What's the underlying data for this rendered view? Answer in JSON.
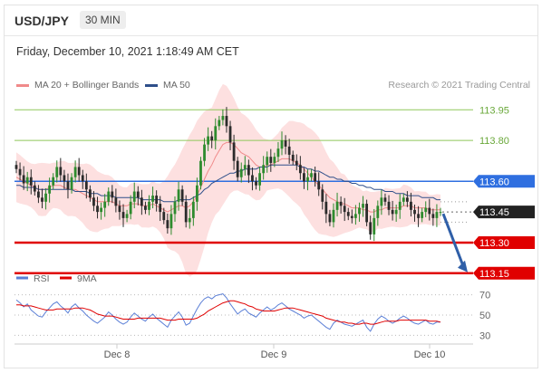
{
  "header": {
    "symbol": "USD/JPY",
    "interval": "30 MIN"
  },
  "datetime": "Friday, December 10, 2021 1:18:49 AM CET",
  "legend": [
    {
      "label": "MA 20 + Bollinger Bands",
      "color": "#f08a8a"
    },
    {
      "label": "MA 50",
      "color": "#2f4f8a"
    }
  ],
  "research_credit": "Research © 2021 Trading Central",
  "chart_data": [
    {
      "type": "candlestick",
      "x_tick_labels": [
        "Dec 8",
        "Dec 9",
        "Dec 10"
      ],
      "ylim": [
        113.22,
        114.0
      ],
      "levels": [
        {
          "value": 113.95,
          "label": "113.95",
          "color": "#8fc85a",
          "kind": "resistance-light"
        },
        {
          "value": 113.8,
          "label": "113.80",
          "color": "#8fc85a",
          "kind": "resistance-light"
        },
        {
          "value": 113.6,
          "label": "113.60",
          "color": "#2f6fe0",
          "kind": "pivot"
        },
        {
          "value": 113.45,
          "label": "113.45",
          "color": "#222222",
          "kind": "last-price"
        },
        {
          "value": 113.3,
          "label": "113.30",
          "color": "#e00000",
          "kind": "support"
        },
        {
          "value": 113.15,
          "label": "113.15",
          "color": "#e00000",
          "kind": "support"
        }
      ],
      "close_series": [
        113.66,
        113.63,
        113.59,
        113.62,
        113.58,
        113.55,
        113.52,
        113.5,
        113.54,
        113.58,
        113.62,
        113.67,
        113.63,
        113.6,
        113.56,
        113.62,
        113.67,
        113.63,
        113.6,
        113.56,
        113.52,
        113.48,
        113.45,
        113.47,
        113.5,
        113.55,
        113.52,
        113.48,
        113.45,
        113.42,
        113.44,
        113.5,
        113.55,
        113.52,
        113.48,
        113.46,
        113.5,
        113.53,
        113.49,
        113.45,
        113.41,
        113.37,
        113.44,
        113.5,
        113.56,
        113.5,
        113.4,
        113.42,
        113.5,
        113.58,
        113.7,
        113.78,
        113.82,
        113.8,
        113.87,
        113.9,
        113.92,
        113.87,
        113.79,
        113.7,
        113.62,
        113.66,
        113.68,
        113.63,
        113.6,
        113.58,
        113.64,
        113.68,
        113.72,
        113.69,
        113.72,
        113.76,
        113.8,
        113.77,
        113.73,
        113.7,
        113.68,
        113.64,
        113.6,
        113.62,
        113.64,
        113.6,
        113.56,
        113.5,
        113.44,
        113.4,
        113.46,
        113.5,
        113.48,
        113.45,
        113.43,
        113.42,
        113.44,
        113.47,
        113.49,
        113.4,
        113.34,
        113.42,
        113.48,
        113.52,
        113.5,
        113.46,
        113.44,
        113.46,
        113.5,
        113.52,
        113.5,
        113.46,
        113.44,
        113.42,
        113.45,
        113.47,
        113.44,
        113.42,
        113.45,
        113.45
      ],
      "ma20_series": [
        113.62,
        113.61,
        113.6,
        113.59,
        113.58,
        113.57,
        113.56,
        113.56,
        113.56,
        113.57,
        113.58,
        113.58,
        113.58,
        113.57,
        113.56,
        113.56,
        113.56,
        113.55,
        113.54,
        113.53,
        113.52,
        113.51,
        113.5,
        113.5,
        113.5,
        113.5,
        113.5,
        113.49,
        113.48,
        113.48,
        113.48,
        113.49,
        113.49,
        113.49,
        113.48,
        113.48,
        113.48,
        113.49,
        113.48,
        113.47,
        113.46,
        113.45,
        113.46,
        113.47,
        113.48,
        113.48,
        113.47,
        113.48,
        113.5,
        113.53,
        113.57,
        113.61,
        113.65,
        113.68,
        113.72,
        113.75,
        113.78,
        113.79,
        113.79,
        113.78,
        113.76,
        113.74,
        113.73,
        113.72,
        113.7,
        113.68,
        113.67,
        113.67,
        113.68,
        113.68,
        113.69,
        113.7,
        113.71,
        113.71,
        113.71,
        113.7,
        113.69,
        113.68,
        113.66,
        113.64,
        113.62,
        113.6,
        113.58,
        113.56,
        113.54,
        113.52,
        113.51,
        113.5,
        113.49,
        113.49,
        113.48,
        113.47,
        113.47,
        113.47,
        113.46,
        113.46,
        113.45,
        113.45,
        113.46,
        113.46,
        113.47,
        113.47,
        113.47,
        113.47,
        113.47,
        113.48,
        113.48,
        113.48,
        113.47,
        113.47,
        113.47,
        113.47,
        113.46,
        113.46,
        113.46,
        113.46
      ],
      "ma50_series": [
        113.58,
        113.58,
        113.57,
        113.57,
        113.57,
        113.57,
        113.56,
        113.56,
        113.56,
        113.56,
        113.56,
        113.56,
        113.56,
        113.56,
        113.56,
        113.56,
        113.55,
        113.55,
        113.55,
        113.55,
        113.54,
        113.54,
        113.54,
        113.53,
        113.53,
        113.53,
        113.53,
        113.52,
        113.52,
        113.52,
        113.52,
        113.52,
        113.52,
        113.52,
        113.51,
        113.51,
        113.51,
        113.51,
        113.51,
        113.51,
        113.5,
        113.5,
        113.5,
        113.5,
        113.51,
        113.51,
        113.51,
        113.51,
        113.52,
        113.53,
        113.54,
        113.56,
        113.57,
        113.59,
        113.6,
        113.61,
        113.62,
        113.63,
        113.64,
        113.64,
        113.65,
        113.65,
        113.66,
        113.66,
        113.66,
        113.66,
        113.67,
        113.67,
        113.67,
        113.68,
        113.68,
        113.68,
        113.68,
        113.68,
        113.68,
        113.68,
        113.68,
        113.67,
        113.67,
        113.66,
        113.66,
        113.65,
        113.65,
        113.64,
        113.63,
        113.62,
        113.62,
        113.61,
        113.61,
        113.6,
        113.6,
        113.59,
        113.59,
        113.58,
        113.58,
        113.57,
        113.57,
        113.56,
        113.56,
        113.56,
        113.55,
        113.55,
        113.55,
        113.54,
        113.54,
        113.54,
        113.53,
        113.53,
        113.53,
        113.53,
        113.52,
        113.52,
        113.52,
        113.52,
        113.51,
        113.51
      ]
    },
    {
      "type": "line",
      "name": "RSI",
      "ylim": [
        25,
        75
      ],
      "y_tick_labels": [
        "70",
        "50",
        "30"
      ],
      "series": [
        {
          "name": "RSI",
          "color": "#5b7fd6",
          "values": [
            65,
            62,
            58,
            61,
            55,
            52,
            49,
            48,
            53,
            57,
            61,
            63,
            59,
            56,
            52,
            58,
            61,
            57,
            54,
            50,
            47,
            44,
            42,
            45,
            48,
            53,
            50,
            46,
            43,
            41,
            43,
            48,
            52,
            49,
            46,
            44,
            48,
            51,
            47,
            44,
            41,
            38,
            45,
            49,
            53,
            48,
            40,
            42,
            49,
            56,
            62,
            66,
            68,
            66,
            69,
            70,
            71,
            67,
            61,
            56,
            51,
            54,
            56,
            52,
            50,
            48,
            52,
            55,
            58,
            55,
            57,
            60,
            62,
            59,
            56,
            54,
            52,
            50,
            47,
            49,
            50,
            47,
            44,
            41,
            38,
            36,
            42,
            45,
            43,
            41,
            40,
            39,
            41,
            43,
            45,
            38,
            34,
            41,
            46,
            49,
            47,
            44,
            42,
            44,
            47,
            49,
            47,
            44,
            42,
            41,
            43,
            45,
            42,
            41,
            43,
            43
          ]
        },
        {
          "name": "9MA",
          "color": "#e00000",
          "values": [
            60,
            60,
            59,
            59,
            59,
            58,
            57,
            56,
            55,
            55,
            55,
            56,
            56,
            56,
            56,
            56,
            57,
            57,
            57,
            56,
            55,
            53,
            51,
            50,
            49,
            49,
            49,
            48,
            47,
            46,
            46,
            46,
            46,
            47,
            47,
            47,
            47,
            47,
            47,
            47,
            46,
            45,
            45,
            45,
            46,
            46,
            46,
            46,
            46,
            47,
            49,
            51,
            54,
            56,
            58,
            60,
            62,
            63,
            64,
            64,
            63,
            62,
            61,
            59,
            58,
            56,
            55,
            54,
            54,
            54,
            54,
            55,
            56,
            57,
            57,
            57,
            56,
            55,
            54,
            53,
            52,
            51,
            50,
            49,
            47,
            46,
            45,
            44,
            43,
            43,
            42,
            42,
            41,
            41,
            42,
            42,
            41,
            41,
            42,
            43,
            44,
            44,
            44,
            44,
            45,
            45,
            45,
            45,
            45,
            45,
            45,
            45,
            44,
            44,
            44,
            43
          ]
        }
      ]
    }
  ]
}
